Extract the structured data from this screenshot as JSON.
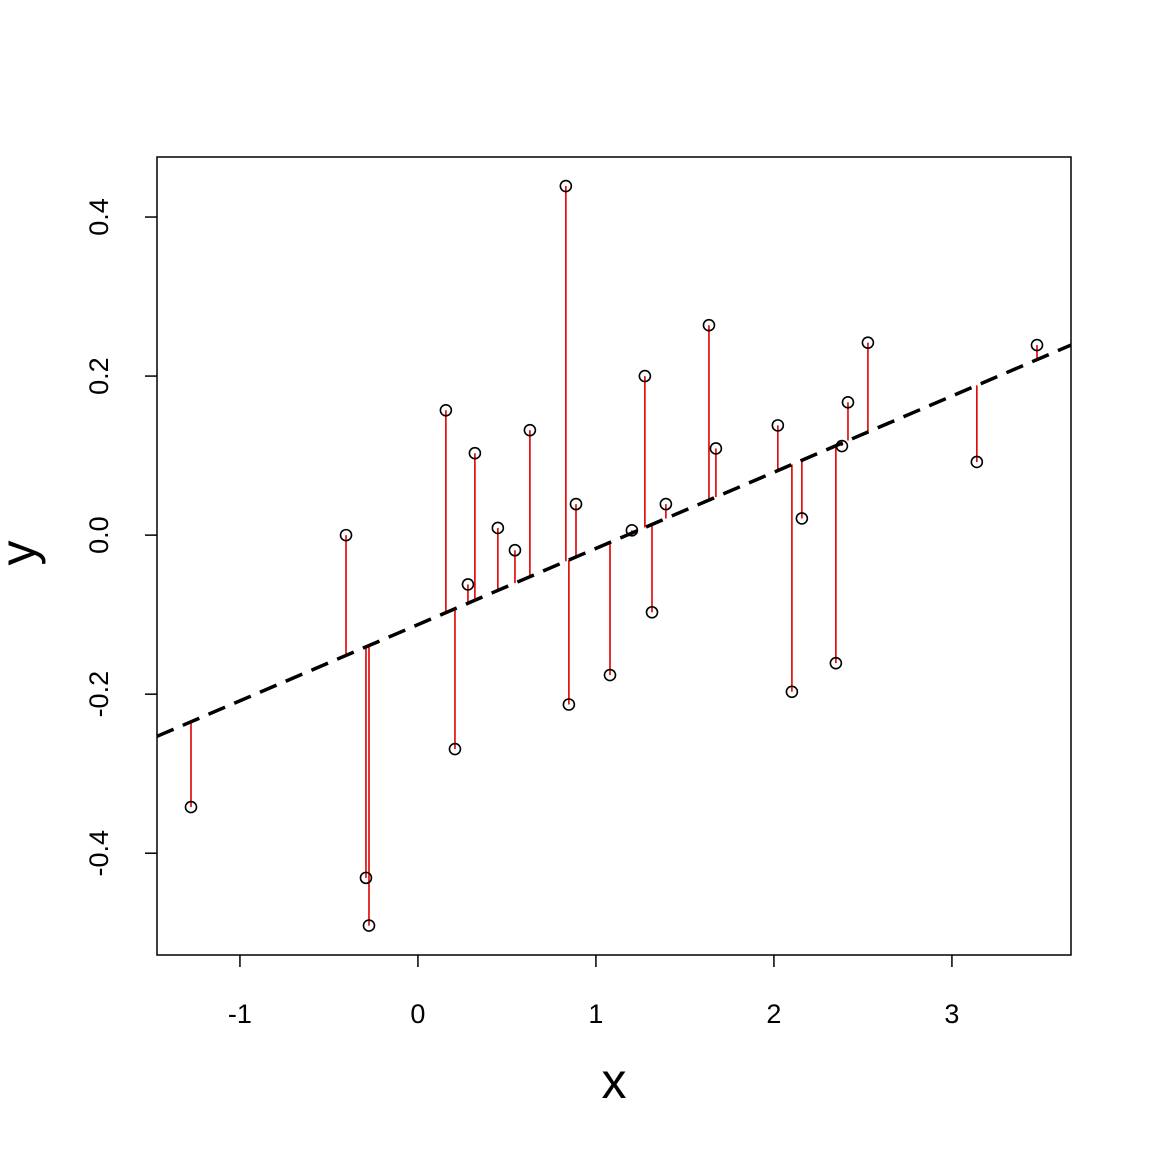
{
  "chart_data": {
    "type": "scatter",
    "x_label": "x",
    "y_label": "y",
    "x": [
      -1.275,
      -0.404,
      -0.292,
      -0.275,
      0.157,
      0.208,
      0.281,
      0.32,
      0.449,
      0.545,
      0.629,
      0.831,
      0.848,
      0.888,
      1.079,
      1.202,
      1.275,
      1.315,
      1.393,
      1.635,
      1.674,
      2.022,
      2.101,
      2.157,
      2.348,
      2.382,
      2.416,
      2.528,
      3.14,
      3.478
    ],
    "values": [
      -0.342,
      0.0,
      -0.431,
      -0.491,
      0.157,
      -0.269,
      -0.062,
      0.103,
      0.009,
      -0.019,
      0.132,
      0.439,
      -0.213,
      0.039,
      -0.176,
      0.006,
      0.2,
      -0.097,
      0.039,
      0.264,
      0.109,
      0.138,
      -0.197,
      0.021,
      -0.161,
      0.112,
      0.167,
      0.242,
      0.092,
      0.239
    ],
    "color": "#000000",
    "residual_color": "#e00000",
    "fit_line": {
      "x": [
        -1.466,
        3.669
      ],
      "y": [
        -0.253,
        0.239
      ],
      "color": "#000000",
      "dashed": true
    },
    "xlim": [
      -1.466,
      3.669
    ],
    "ylim": [
      -0.528,
      0.4755
    ],
    "xticks": [
      -1,
      0,
      1,
      2,
      3
    ],
    "yticks": [
      -0.4,
      -0.2,
      {
        "value": 0,
        "label": "0.0"
      },
      0.2,
      0.4
    ],
    "grid": false
  }
}
